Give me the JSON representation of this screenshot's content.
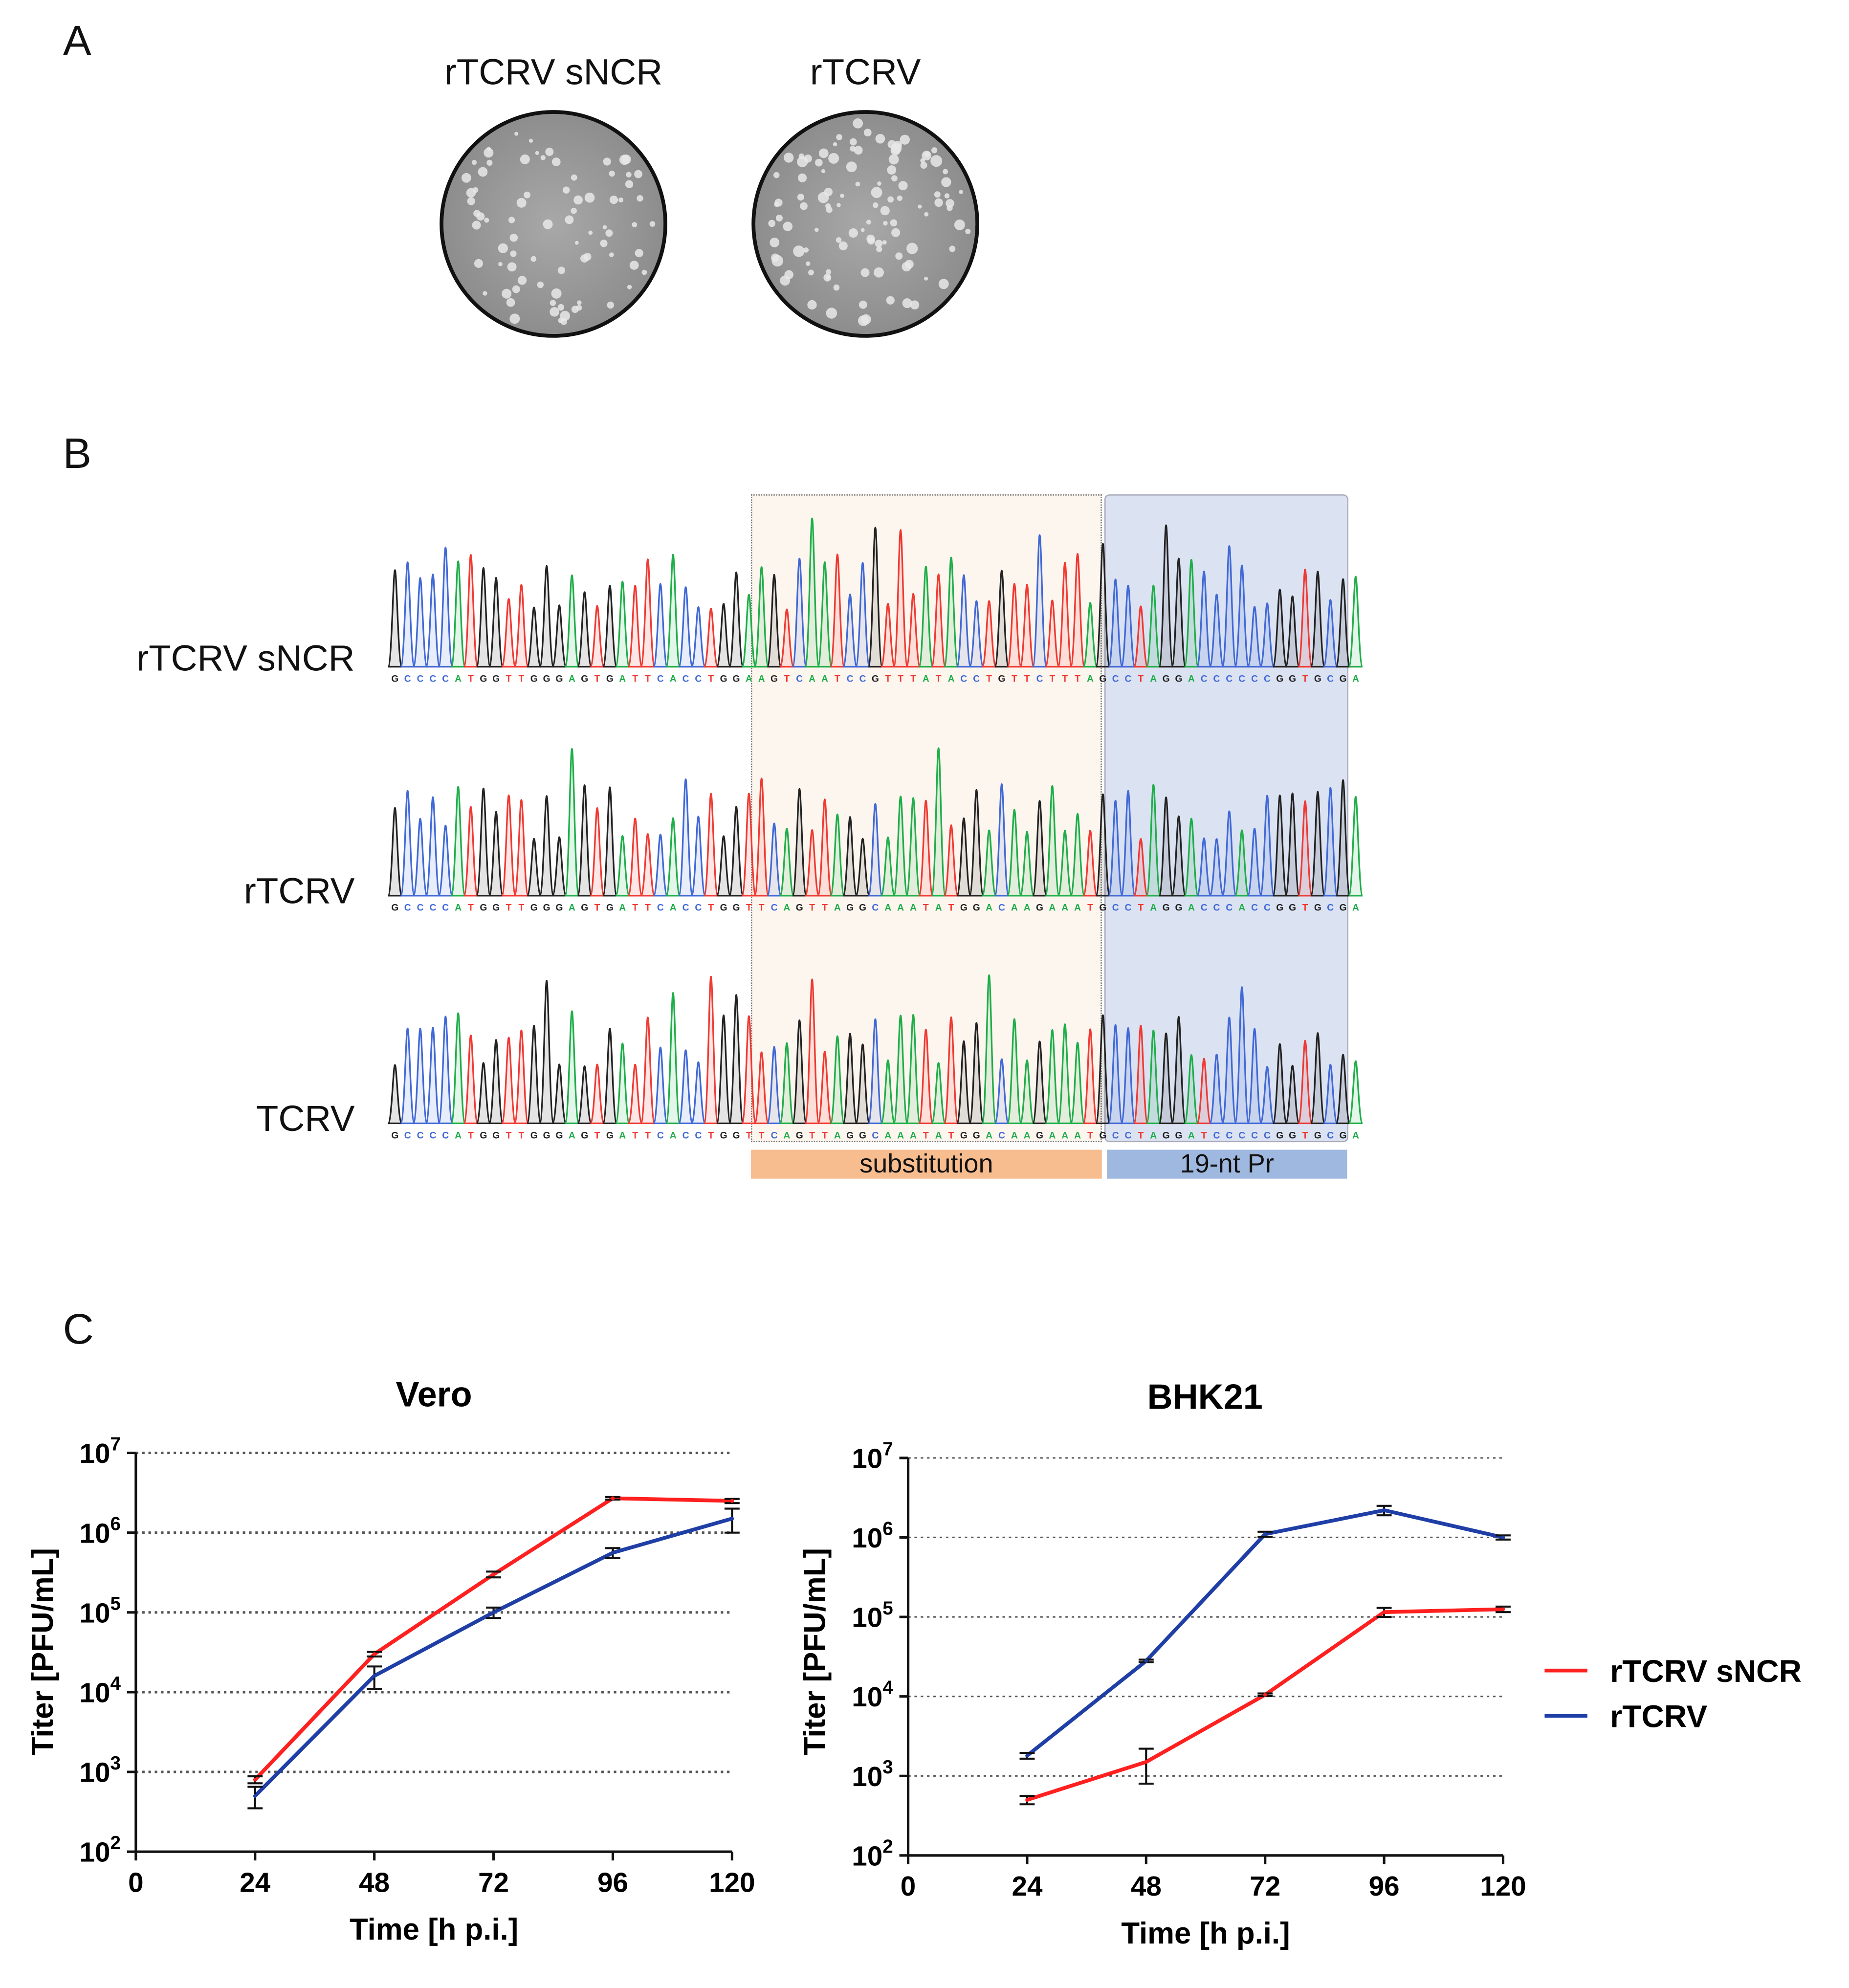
{
  "panels": {
    "a": "A",
    "b": "B",
    "c": "C"
  },
  "panel_a": {
    "plates": [
      {
        "label": "rTCRV sNCR"
      },
      {
        "label": "rTCRV"
      }
    ]
  },
  "panel_b": {
    "rows": [
      {
        "label": "rTCRV sNCR",
        "left": "GCCCCATGGTTGGGAGTGATTCACCTGG",
        "sub": "AAGTCAATCCGTTTATACCTGTTCTTTA",
        "pr": "GCCTAGGACCCCCCGGTGCGA"
      },
      {
        "label": "rTCRV",
        "left": "GCCCCATGGTTGGGAGTGATTCACCTGG",
        "sub": "TTCAGTTAGGCAAATATGGACAAGAAAT",
        "pr": "GCCTAGGACCCACCGGTGCGA"
      },
      {
        "label": "TCRV",
        "left": "GCCCCATGGTTGGGAGTGATTCACCTGG",
        "sub": "TTCAGTTAGGCAAATATGGACAAGAAAT",
        "pr": "GCCTAGGATCCCCCGGTGCGA"
      }
    ],
    "substitution_label": "substitution",
    "promoter_label": "19-nt Pr",
    "base_colors": {
      "A": "#1fae4a",
      "C": "#4169d6",
      "G": "#222222",
      "T": "#ee3a33"
    },
    "substitution_color": "#f8bd8f",
    "promoter_color": "#9fb8e0"
  },
  "chart_data": [
    {
      "type": "line",
      "title": "Vero",
      "xlabel": "Time [h p.i.]",
      "ylabel": "Titer [PFU/mL]",
      "xlim": [
        0,
        120
      ],
      "ylim_log10": [
        2,
        7
      ],
      "yscale": "log",
      "x_ticks": [
        "0",
        "24",
        "48",
        "72",
        "96",
        "120"
      ],
      "y_ticks": [
        {
          "base": "10",
          "exp": "2"
        },
        {
          "base": "10",
          "exp": "3"
        },
        {
          "base": "10",
          "exp": "4"
        },
        {
          "base": "10",
          "exp": "5"
        },
        {
          "base": "10",
          "exp": "6"
        },
        {
          "base": "10",
          "exp": "7"
        }
      ],
      "grid": "horizontal-dotted",
      "x": [
        24,
        48,
        72,
        96,
        120
      ],
      "series": [
        {
          "name": "rTCRV sNCR",
          "color": "#ff2020",
          "values": [
            800,
            30000,
            300000,
            2700000,
            2500000
          ],
          "err": [
            80,
            2000,
            25000,
            100000,
            150000
          ]
        },
        {
          "name": "rTCRV",
          "color": "#1f3fa6",
          "values": [
            500,
            16000,
            100000,
            560000,
            1500000
          ],
          "err": [
            150,
            5000,
            15000,
            80000,
            500000
          ]
        }
      ]
    },
    {
      "type": "line",
      "title": "BHK21",
      "xlabel": "Time [h p.i.]",
      "ylabel": "Titer [PFU/mL]",
      "xlim": [
        0,
        120
      ],
      "ylim_log10": [
        2,
        7
      ],
      "yscale": "log",
      "x_ticks": [
        "0",
        "24",
        "48",
        "72",
        "96",
        "120"
      ],
      "y_ticks": [
        {
          "base": "10",
          "exp": "2"
        },
        {
          "base": "10",
          "exp": "3"
        },
        {
          "base": "10",
          "exp": "4"
        },
        {
          "base": "10",
          "exp": "5"
        },
        {
          "base": "10",
          "exp": "6"
        },
        {
          "base": "10",
          "exp": "7"
        }
      ],
      "grid": "horizontal-dotted",
      "x": [
        24,
        48,
        72,
        96,
        120
      ],
      "series": [
        {
          "name": "rTCRV sNCR",
          "color": "#ff2020",
          "values": [
            500,
            1500,
            10500,
            115000,
            125000
          ],
          "err": [
            60,
            700,
            400,
            15000,
            10000
          ]
        },
        {
          "name": "rTCRV",
          "color": "#1f3fa6",
          "values": [
            1800,
            28000,
            1100000,
            2200000,
            1000000
          ],
          "err": [
            150,
            1000,
            80000,
            300000,
            60000
          ]
        }
      ],
      "legend": {
        "placement": "right",
        "entries": [
          "rTCRV sNCR",
          "rTCRV"
        ]
      }
    }
  ]
}
